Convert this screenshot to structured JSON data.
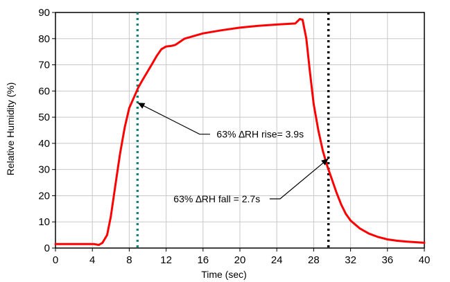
{
  "chart_data": {
    "type": "line",
    "title": "",
    "xlabel": "Time (sec)",
    "ylabel": "Relative Humidity (%)",
    "xlim": [
      0,
      40
    ],
    "ylim": [
      0,
      90
    ],
    "grid": true,
    "x_ticks": [
      0,
      4,
      8,
      12,
      16,
      20,
      24,
      28,
      32,
      36,
      40
    ],
    "y_ticks": [
      0,
      10,
      20,
      30,
      40,
      50,
      60,
      70,
      80,
      90
    ],
    "series": [
      {
        "color": "#ff0000",
        "x": [
          0,
          4.2,
          4.7,
          5.1,
          5.6,
          6.0,
          6.5,
          7.0,
          7.5,
          8.0,
          8.5,
          9.0,
          9.5,
          10.0,
          10.5,
          11.0,
          11.5,
          12.0,
          12.5,
          13.0,
          14.0,
          16.0,
          18.0,
          20.0,
          22.0,
          24.0,
          26.0,
          26.5,
          26.8,
          27.2,
          27.6,
          28.0,
          28.5,
          29.0,
          29.5,
          30.0,
          30.5,
          31.0,
          31.5,
          32.0,
          33.0,
          34.0,
          35.0,
          36.0,
          37.0,
          38.0,
          40.0
        ],
        "y": [
          1.5,
          1.5,
          1.2,
          2.0,
          5.0,
          12.0,
          24.0,
          36.0,
          46.0,
          53.5,
          57.5,
          61.5,
          64.5,
          67.5,
          70.5,
          73.5,
          76.0,
          77.0,
          77.2,
          77.6,
          80.0,
          82.0,
          83.2,
          84.2,
          84.9,
          85.4,
          85.8,
          87.5,
          87.2,
          80.0,
          67.0,
          55.0,
          45.0,
          37.0,
          31.0,
          26.0,
          21.0,
          16.5,
          13.0,
          10.5,
          7.5,
          5.5,
          4.2,
          3.3,
          2.8,
          2.5,
          2.0
        ]
      }
    ],
    "markers": {
      "rise_line": {
        "x": 8.9,
        "color": "#14857e"
      },
      "fall_line": {
        "x": 29.6,
        "color": "#000000"
      }
    },
    "annotations": [
      {
        "text": "63% ∆RH rise= 3.9s",
        "point_x": 8.9,
        "point_y": 55.5,
        "text_x": 22.2,
        "text_y": 43.5
      },
      {
        "text": "63% ∆RH fall = 2.7s",
        "point_x": 29.6,
        "point_y": 34.2,
        "text_x": 17.5,
        "text_y": 18.8
      }
    ]
  }
}
